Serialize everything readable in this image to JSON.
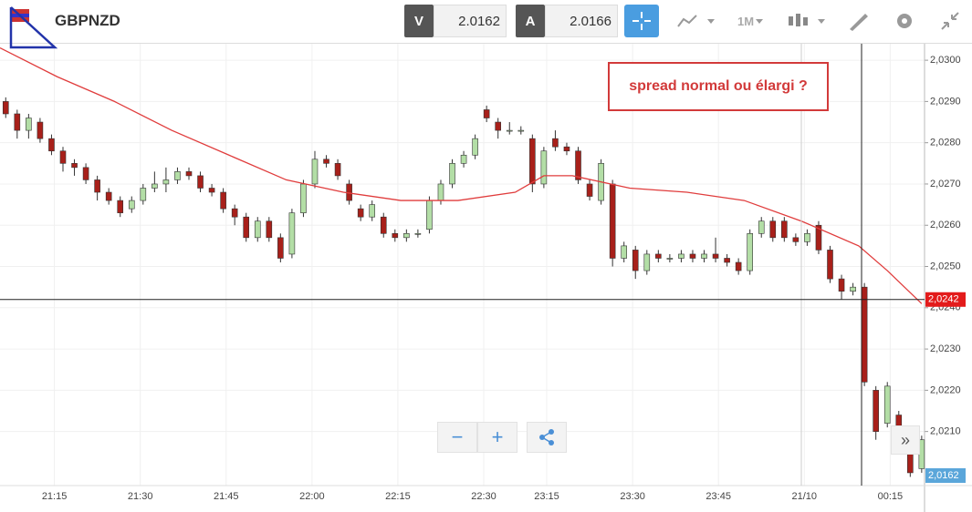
{
  "toolbar": {
    "symbol": "GBPNZD",
    "sell_label": "V",
    "sell_price": "2.0162",
    "buy_label": "A",
    "buy_price": "2.0166",
    "timeframe": "1M"
  },
  "chart_data": {
    "type": "candlestick",
    "annotation": "spread normal ou élargi ?",
    "xlim": [
      0,
      161.5
    ],
    "ylim": [
      2.0198,
      2.0304
    ],
    "xticks": [
      {
        "value": 9.5,
        "label": "21:15"
      },
      {
        "value": 24.5,
        "label": "21:30"
      },
      {
        "value": 39.5,
        "label": "21:45"
      },
      {
        "value": 54.5,
        "label": "22:00"
      },
      {
        "value": 69.5,
        "label": "22:15"
      },
      {
        "value": 84.5,
        "label": "22:30"
      },
      {
        "value": 95.5,
        "label": "23:15"
      },
      {
        "value": 110.5,
        "label": "23:30"
      },
      {
        "value": 125.5,
        "label": "23:45"
      },
      {
        "value": 140.5,
        "label": "21/10"
      },
      {
        "value": 155.5,
        "label": "00:15"
      }
    ],
    "yticks": [
      {
        "value": 2.021,
        "label": "2,0210"
      },
      {
        "value": 2.022,
        "label": "2,0220"
      },
      {
        "value": 2.023,
        "label": "2,0230"
      },
      {
        "value": 2.024,
        "label": "2,0240"
      },
      {
        "value": 2.025,
        "label": "2,0250"
      },
      {
        "value": 2.026,
        "label": "2,0260"
      },
      {
        "value": 2.027,
        "label": "2,0270"
      },
      {
        "value": 2.028,
        "label": "2,0280"
      },
      {
        "value": 2.029,
        "label": "2,0290"
      },
      {
        "value": 2.03,
        "label": "2,0300"
      }
    ],
    "up_color": "#b3dea6",
    "down_color": "#a8201a",
    "x": [
      1,
      3,
      5,
      7,
      9,
      11,
      13,
      15,
      17,
      19,
      21,
      23,
      25,
      27,
      29,
      31,
      33,
      35,
      37,
      39,
      41,
      43,
      45,
      47,
      49,
      51,
      53,
      55,
      57,
      59,
      61,
      63,
      65,
      67,
      69,
      71,
      73,
      75,
      77,
      79,
      81,
      83,
      85,
      87,
      89,
      91,
      93,
      95,
      97,
      99,
      101,
      103,
      105,
      107,
      109,
      111,
      113,
      115,
      117,
      119,
      121,
      123,
      125,
      127,
      129,
      131,
      133,
      135,
      137,
      139,
      141,
      143,
      145,
      147,
      149,
      151,
      153,
      155,
      157,
      159,
      161
    ],
    "open": [
      2.029,
      2.0287,
      2.0283,
      2.0285,
      2.0281,
      2.0278,
      2.0275,
      2.0274,
      2.0271,
      2.0268,
      2.0266,
      2.0264,
      2.0266,
      2.0269,
      2.027,
      2.0271,
      2.0273,
      2.0272,
      2.0269,
      2.0268,
      2.0264,
      2.0262,
      2.0257,
      2.0261,
      2.0257,
      2.0253,
      2.0263,
      2.027,
      2.0276,
      2.0275,
      2.027,
      2.0264,
      2.0262,
      2.0262,
      2.0258,
      2.0257,
      2.0258,
      2.0259,
      2.0266,
      2.027,
      2.0275,
      2.0277,
      2.0288,
      2.0285,
      2.0283,
      2.0283,
      2.0281,
      2.027,
      2.0281,
      2.0279,
      2.0278,
      2.027,
      2.0266,
      2.027,
      2.0252,
      2.0254,
      2.0249,
      2.0253,
      2.0252,
      2.0252,
      2.0253,
      2.0252,
      2.0253,
      2.0252,
      2.0251,
      2.0249,
      2.0258,
      2.0261,
      2.0261,
      2.0257,
      2.0256,
      2.026,
      2.0254,
      2.0247,
      2.0244,
      2.0245,
      2.022,
      2.0212,
      2.0214,
      2.0205,
      2.0201
    ],
    "high": [
      2.0291,
      2.0288,
      2.0287,
      2.0286,
      2.0282,
      2.0279,
      2.0276,
      2.0275,
      2.0272,
      2.0269,
      2.0267,
      2.0267,
      2.027,
      2.0273,
      2.0274,
      2.0274,
      2.0274,
      2.0273,
      2.027,
      2.0269,
      2.0265,
      2.0263,
      2.0262,
      2.0262,
      2.0258,
      2.0264,
      2.0271,
      2.0278,
      2.0277,
      2.0276,
      2.0271,
      2.0265,
      2.0266,
      2.0263,
      2.0259,
      2.0259,
      2.0259,
      2.0267,
      2.0271,
      2.0276,
      2.0278,
      2.0282,
      2.0289,
      2.0286,
      2.0285,
      2.0284,
      2.0282,
      2.0279,
      2.0283,
      2.028,
      2.0279,
      2.0271,
      2.0276,
      2.0271,
      2.0256,
      2.0255,
      2.0254,
      2.0254,
      2.0253,
      2.0254,
      2.0254,
      2.0254,
      2.0257,
      2.0253,
      2.0252,
      2.0259,
      2.0262,
      2.0262,
      2.0262,
      2.0258,
      2.0259,
      2.0261,
      2.0255,
      2.0248,
      2.0246,
      2.0246,
      2.0221,
      2.0222,
      2.0215,
      2.0206,
      2.0209
    ],
    "low": [
      2.0286,
      2.0281,
      2.0281,
      2.028,
      2.0277,
      2.0273,
      2.0272,
      2.027,
      2.0266,
      2.0265,
      2.0262,
      2.0263,
      2.0265,
      2.0268,
      2.0268,
      2.027,
      2.0271,
      2.0268,
      2.0267,
      2.0263,
      2.026,
      2.0256,
      2.0256,
      2.0256,
      2.0251,
      2.0252,
      2.0262,
      2.0269,
      2.0274,
      2.0271,
      2.0265,
      2.0261,
      2.0261,
      2.0257,
      2.0256,
      2.0256,
      2.0257,
      2.0258,
      2.0265,
      2.0269,
      2.0274,
      2.0276,
      2.0285,
      2.0281,
      2.0282,
      2.0282,
      2.0268,
      2.0269,
      2.0278,
      2.0277,
      2.027,
      2.0266,
      2.0265,
      2.025,
      2.0251,
      2.0247,
      2.0248,
      2.0251,
      2.0251,
      2.0251,
      2.0251,
      2.0251,
      2.0251,
      2.025,
      2.0248,
      2.0248,
      2.0257,
      2.0256,
      2.0256,
      2.0255,
      2.0255,
      2.0253,
      2.0246,
      2.0242,
      2.0243,
      2.0221,
      2.0208,
      2.0211,
      2.0206,
      2.0199,
      2.02
    ],
    "close": [
      2.0287,
      2.0283,
      2.0286,
      2.0281,
      2.0278,
      2.0275,
      2.0274,
      2.0271,
      2.0268,
      2.0266,
      2.0263,
      2.0266,
      2.0269,
      2.027,
      2.0271,
      2.0273,
      2.0272,
      2.0269,
      2.0268,
      2.0264,
      2.0262,
      2.0257,
      2.0261,
      2.0257,
      2.0252,
      2.0263,
      2.027,
      2.0276,
      2.0275,
      2.0272,
      2.0266,
      2.0262,
      2.0265,
      2.0258,
      2.0257,
      2.0258,
      2.0258,
      2.0266,
      2.027,
      2.0275,
      2.0277,
      2.0281,
      2.0286,
      2.0283,
      2.0283,
      2.0283,
      2.027,
      2.0278,
      2.0279,
      2.0278,
      2.0271,
      2.0267,
      2.0275,
      2.0252,
      2.0255,
      2.0249,
      2.0253,
      2.0252,
      2.0252,
      2.0253,
      2.0252,
      2.0253,
      2.0252,
      2.0251,
      2.0249,
      2.0258,
      2.0261,
      2.0257,
      2.0257,
      2.0256,
      2.0258,
      2.0254,
      2.0247,
      2.0244,
      2.0245,
      2.0222,
      2.021,
      2.0221,
      2.0207,
      2.02,
      2.0208
    ],
    "moving_average": {
      "color": "#e03c3c",
      "x": [
        0,
        10,
        20,
        30,
        40,
        50,
        60,
        70,
        80,
        90,
        95,
        100,
        110,
        120,
        130,
        140,
        150,
        155,
        161
      ],
      "values": [
        2.0303,
        2.0296,
        2.029,
        2.0283,
        2.0277,
        2.0271,
        2.0268,
        2.0266,
        2.0266,
        2.0268,
        2.0272,
        2.0272,
        2.0269,
        2.0268,
        2.0266,
        2.0261,
        2.0255,
        2.0249,
        2.0241
      ]
    },
    "current_price": {
      "value": 2.0242,
      "label": "2,0242"
    },
    "bid_price": {
      "value": 2.0162,
      "label": "2,0162"
    }
  }
}
